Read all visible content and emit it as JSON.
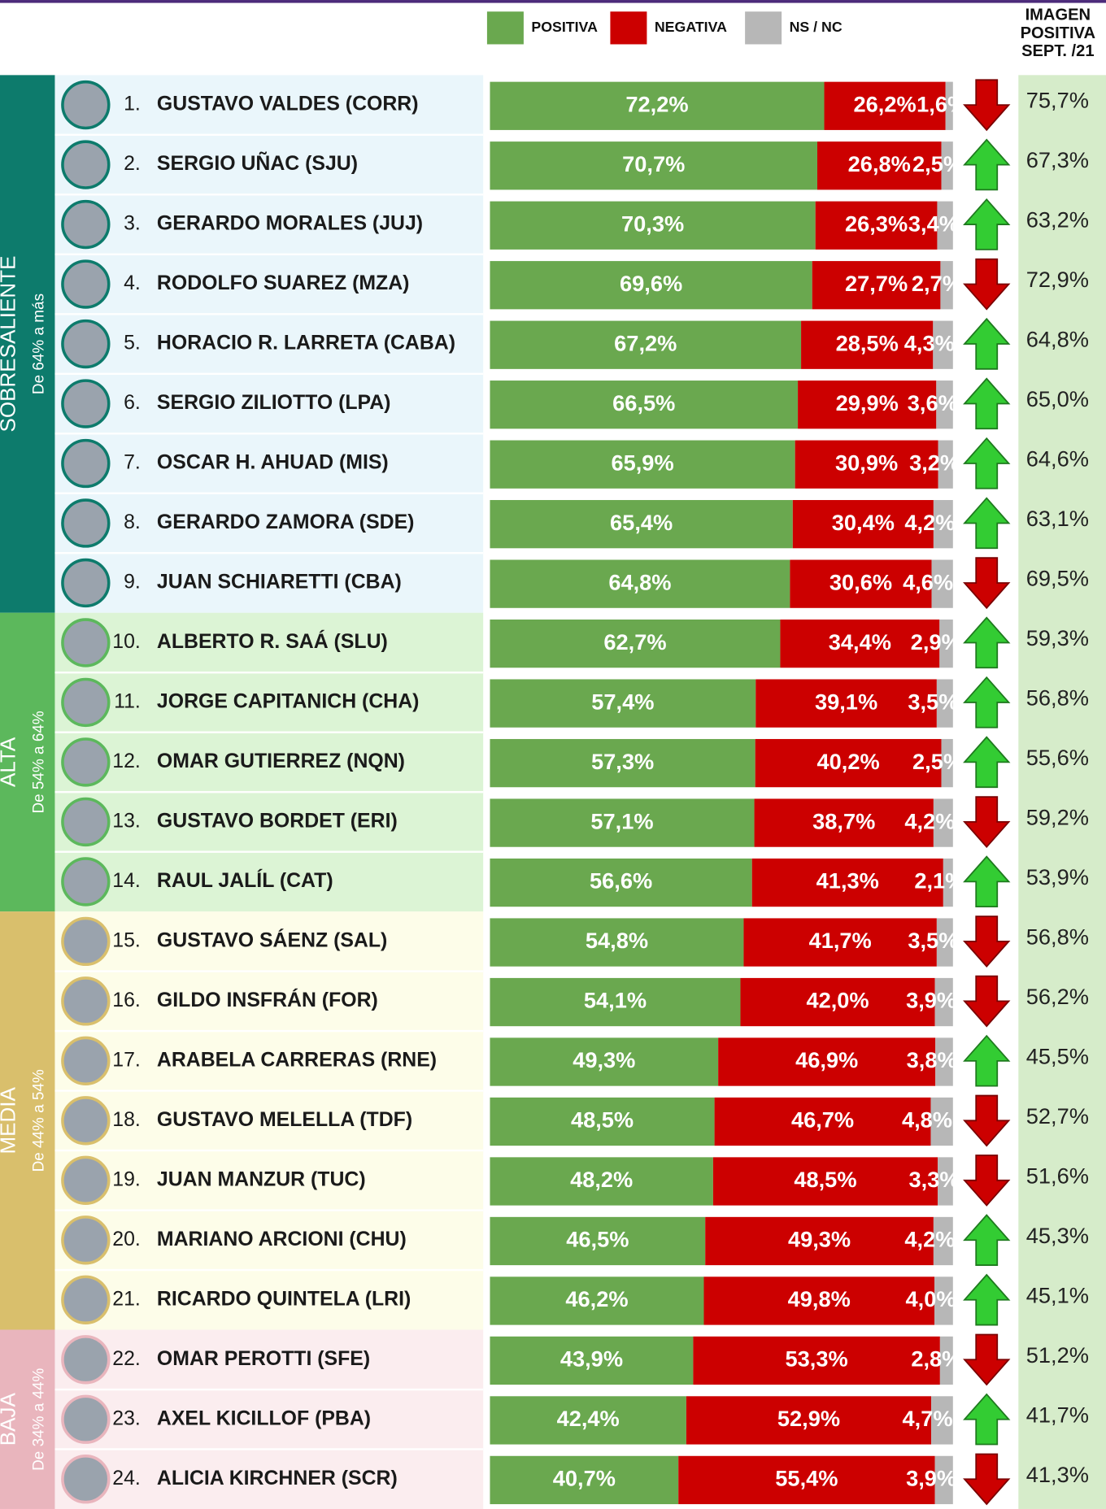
{
  "chart_data": {
    "type": "bar",
    "orientation": "horizontal",
    "stacked": true,
    "xlim": [
      0,
      100
    ],
    "series": [
      {
        "name": "POSITIVA",
        "color": "#6aa84f"
      },
      {
        "name": "NEGATIVA",
        "color": "#cc0000"
      },
      {
        "name": "NS / NC",
        "color": "#b7b7b7"
      }
    ],
    "previous_title": [
      "IMAGEN",
      "POSITIVA",
      "SEPT. /21"
    ],
    "previous_color": "#d6ecca",
    "groups": [
      {
        "label": "SOBRESALIENTE",
        "sublabel": "De 64% a más",
        "color": "#0d7b6c",
        "background": "#eaf6fb",
        "ranks": [
          "1.",
          "2.",
          "3.",
          "4.",
          "5.",
          "6.",
          "7.",
          "8.",
          "9."
        ],
        "categories": [
          "GUSTAVO VALDES (CORR)",
          "SERGIO UÑAC (SJU)",
          "GERARDO MORALES (JUJ)",
          "RODOLFO SUAREZ (MZA)",
          "HORACIO R. LARRETA (CABA)",
          "SERGIO ZILIOTTO (LPA)",
          "OSCAR H. AHUAD (MIS)",
          "GERARDO ZAMORA (SDE)",
          "JUAN SCHIARETTI (CBA)"
        ],
        "series": [
          {
            "values": [
              72.2,
              70.7,
              70.3,
              69.6,
              67.2,
              66.5,
              65.9,
              65.4,
              64.8
            ],
            "value_labels": [
              "72,2%",
              "70,7%",
              "70,3%",
              "69,6%",
              "67,2%",
              "66,5%",
              "65,9%",
              "65,4%",
              "64,8%"
            ]
          },
          {
            "values": [
              26.2,
              26.8,
              26.3,
              27.7,
              28.5,
              29.9,
              30.9,
              30.4,
              30.6
            ],
            "value_labels": [
              "26,2%",
              "26,8%",
              "26,3%",
              "27,7%",
              "28,5%",
              "29,9%",
              "30,9%",
              "30,4%",
              "30,6%"
            ]
          },
          {
            "values": [
              1.6,
              2.5,
              3.4,
              2.7,
              4.3,
              3.6,
              3.2,
              4.2,
              4.6
            ],
            "value_labels": [
              "1,6%",
              "2,5%",
              "3,4%",
              "2,7%",
              "4,3%",
              "3,6%",
              "3,2%",
              "4,2%",
              "4,6%"
            ]
          }
        ],
        "previous": {
          "values": [
            75.7,
            67.3,
            63.2,
            72.9,
            64.8,
            65.0,
            64.6,
            63.1,
            69.5
          ],
          "value_labels": [
            "75,7%",
            "67,3%",
            "63,2%",
            "72,9%",
            "64,8%",
            "65,0%",
            "64,6%",
            "63,1%",
            "69,5%"
          ]
        }
      },
      {
        "label": "ALTA",
        "sublabel": "De 54% a  64%",
        "color": "#5cb85c",
        "background": "#dcf4d5",
        "ranks": [
          "10.",
          "11.",
          "12.",
          "13.",
          "14."
        ],
        "categories": [
          "ALBERTO R. SAÁ (SLU)",
          "JORGE CAPITANICH (CHA)",
          "OMAR GUTIERREZ (NQN)",
          "GUSTAVO BORDET (ERI)",
          "RAUL JALÍL (CAT)"
        ],
        "series": [
          {
            "values": [
              62.7,
              57.4,
              57.3,
              57.1,
              56.6
            ],
            "value_labels": [
              "62,7%",
              "57,4%",
              "57,3%",
              "57,1%",
              "56,6%"
            ]
          },
          {
            "values": [
              34.4,
              39.1,
              40.2,
              38.7,
              41.3
            ],
            "value_labels": [
              "34,4%",
              "39,1%",
              "40,2%",
              "38,7%",
              "41,3%"
            ]
          },
          {
            "values": [
              2.9,
              3.5,
              2.5,
              4.2,
              2.1
            ],
            "value_labels": [
              "2,9%",
              "3,5%",
              "2,5%",
              "4,2%",
              "2,1%"
            ]
          }
        ],
        "previous": {
          "values": [
            59.3,
            56.8,
            55.6,
            59.2,
            53.9
          ],
          "value_labels": [
            "59,3%",
            "56,8%",
            "55,6%",
            "59,2%",
            "53,9%"
          ]
        }
      },
      {
        "label": "MEDIA",
        "sublabel": "De 44% a  54%",
        "color": "#d9bf6c",
        "background": "#fdfde9",
        "ranks": [
          "15.",
          "16.",
          "17.",
          "18.",
          "19.",
          "20.",
          "21."
        ],
        "categories": [
          "GUSTAVO SÁENZ (SAL)",
          "GILDO INSFRÁN (FOR)",
          "ARABELA CARRERAS (RNE)",
          "GUSTAVO MELELLA (TDF)",
          "JUAN MANZUR (TUC)",
          "MARIANO ARCIONI (CHU)",
          "RICARDO QUINTELA (LRI)"
        ],
        "series": [
          {
            "values": [
              54.8,
              54.1,
              49.3,
              48.5,
              48.2,
              46.5,
              46.2
            ],
            "value_labels": [
              "54,8%",
              "54,1%",
              "49,3%",
              "48,5%",
              "48,2%",
              "46,5%",
              "46,2%"
            ]
          },
          {
            "values": [
              41.7,
              42.0,
              46.9,
              46.7,
              48.5,
              49.3,
              49.8
            ],
            "value_labels": [
              "41,7%",
              "42,0%",
              "46,9%",
              "46,7%",
              "48,5%",
              "49,3%",
              "49,8%"
            ]
          },
          {
            "values": [
              3.5,
              3.9,
              3.8,
              4.8,
              3.3,
              4.2,
              4.0
            ],
            "value_labels": [
              "3,5%",
              "3,9%",
              "3,8%",
              "4,8%",
              "3,3%",
              "4,2%",
              "4,0%"
            ]
          }
        ],
        "previous": {
          "values": [
            56.8,
            56.2,
            45.5,
            52.7,
            51.6,
            45.3,
            45.1
          ],
          "value_labels": [
            "56,8%",
            "56,2%",
            "45,5%",
            "52,7%",
            "51,6%",
            "45,3%",
            "45,1%"
          ]
        }
      },
      {
        "label": "BAJA",
        "sublabel": "De 34% a  44%",
        "color": "#e9b5bd",
        "background": "#fbedef",
        "ranks": [
          "22.",
          "23.",
          "24."
        ],
        "categories": [
          "OMAR PEROTTI (SFE)",
          "AXEL KICILLOF (PBA)",
          "ALICIA KIRCHNER (SCR)"
        ],
        "series": [
          {
            "values": [
              43.9,
              42.4,
              40.7
            ],
            "value_labels": [
              "43,9%",
              "42,4%",
              "40,7%"
            ]
          },
          {
            "values": [
              53.3,
              52.9,
              55.4
            ],
            "value_labels": [
              "53,3%",
              "52,9%",
              "55,4%"
            ]
          },
          {
            "values": [
              2.8,
              4.7,
              3.9
            ],
            "value_labels": [
              "2,8%",
              "4,7%",
              "3,9%"
            ]
          }
        ],
        "previous": {
          "values": [
            51.2,
            41.7,
            41.3
          ],
          "value_labels": [
            "51,2%",
            "41,7%",
            "41,3%"
          ]
        }
      }
    ]
  }
}
